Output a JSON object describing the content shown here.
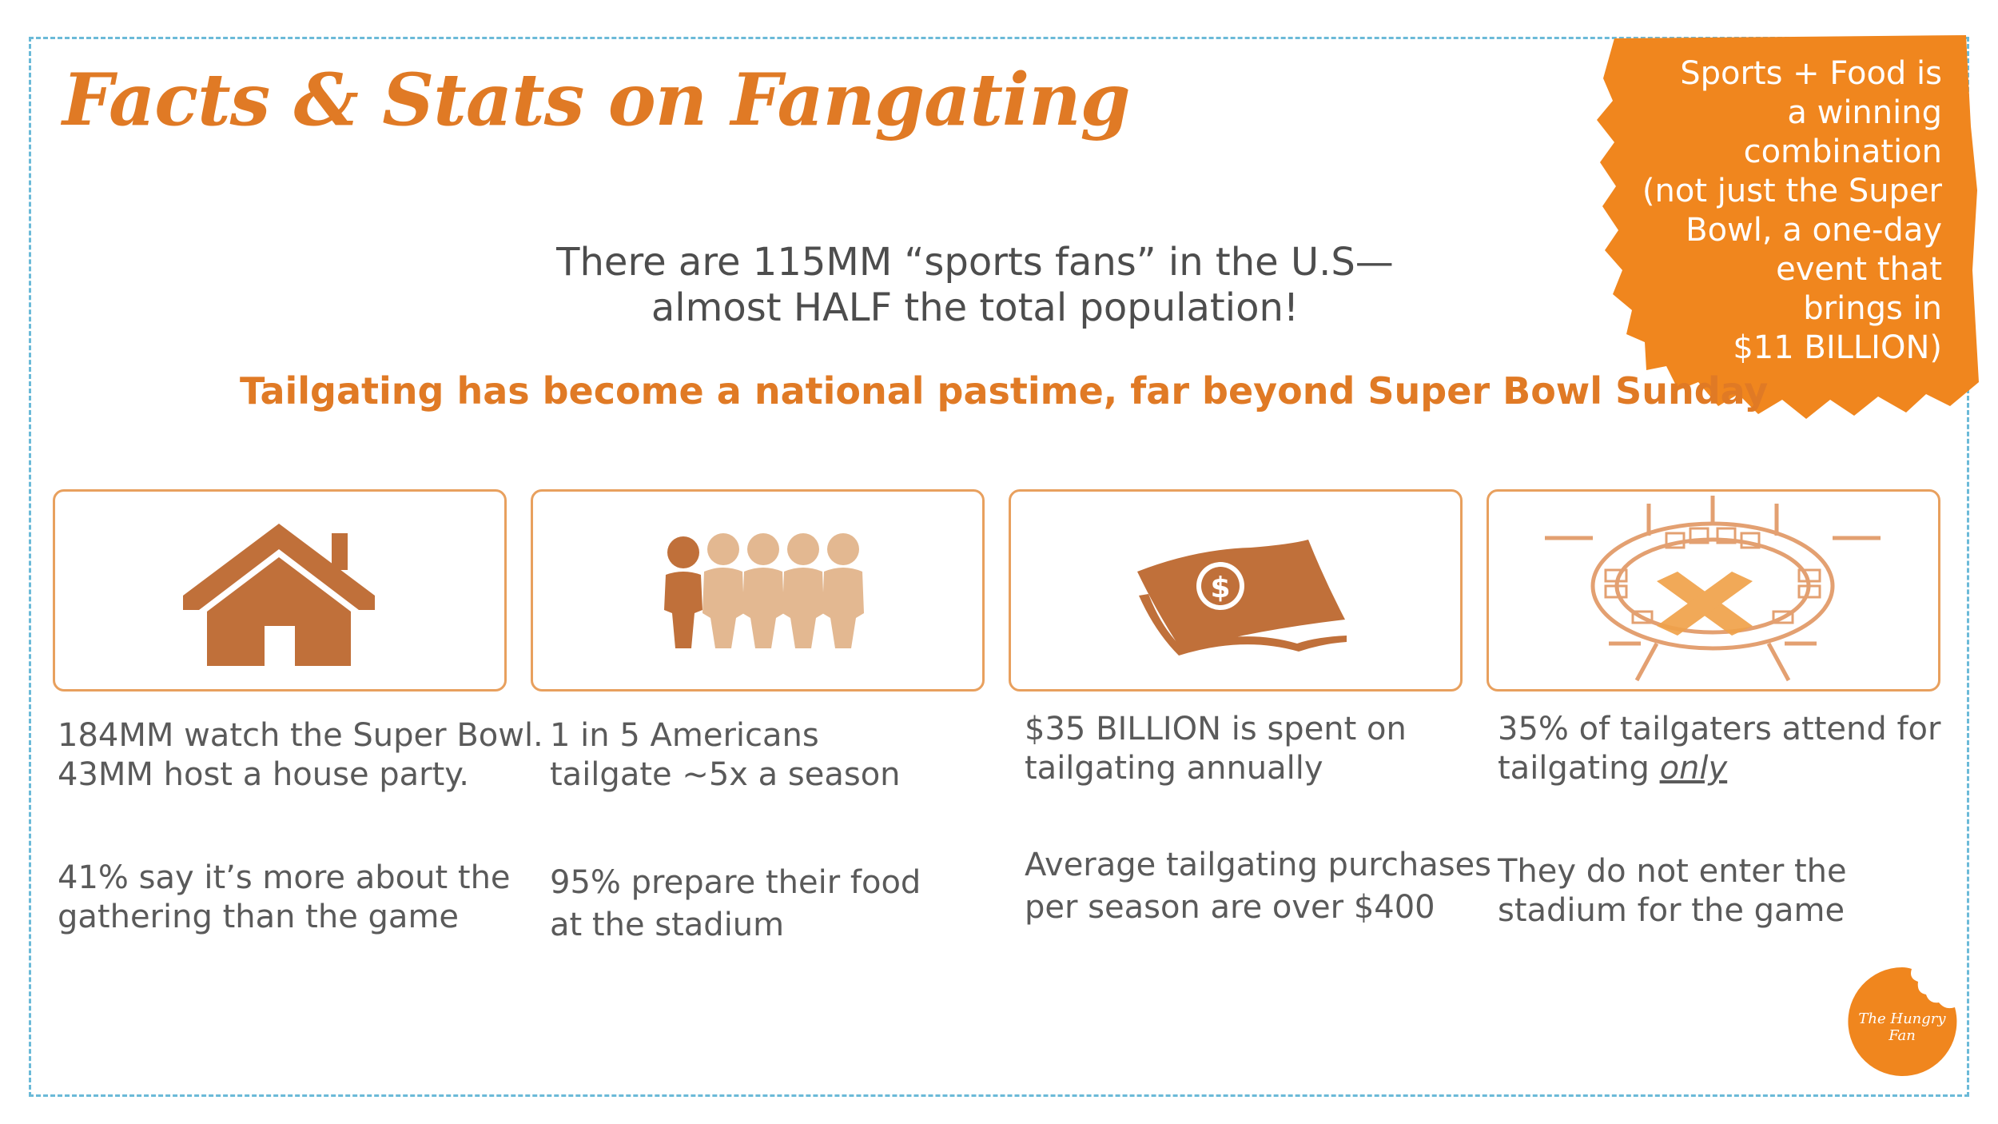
{
  "title": "Facts & Stats on Fangating",
  "splash": {
    "lines": [
      "Sports + Food is",
      "a winning",
      "combination",
      "(not just the Super",
      "Bowl, a one-day",
      "event that",
      "brings in",
      "$11 BILLION)"
    ],
    "color": "#f0861e"
  },
  "headline": {
    "line1": "There are 115MM “sports fans” in the U.S—",
    "line2": "almost HALF the total population!"
  },
  "subheadline": "Tailgating has become a national pastime, far beyond Super Bowl Sunday",
  "colors": {
    "accent": "#e07a25",
    "icon_dark": "#c0703a",
    "icon_light": "#e3b891",
    "frame": "#6bbad8",
    "text": "#5a5a5a"
  },
  "cards": [
    {
      "icon": "house-icon",
      "fact1": [
        "184MM watch the Super Bowl.",
        "43MM host a house party."
      ],
      "fact2": [
        "41% say it’s more about the",
        "gathering than the game"
      ]
    },
    {
      "icon": "people-icon",
      "fact1": [
        "1 in 5 Americans",
        "tailgate ~5x a season"
      ],
      "fact2": [
        "95% prepare their food",
        "at the stadium"
      ]
    },
    {
      "icon": "money-icon",
      "fact1": [
        "$35 BILLION is spent on",
        "tailgating annually"
      ],
      "fact2": [
        "Average tailgating purchases",
        "per season are over $400"
      ]
    },
    {
      "icon": "stadium-crossed-icon",
      "fact1_pre": "35% of tailgaters attend for",
      "fact1_main": "tailgating ",
      "fact1_emph": "only",
      "fact2": [
        "They do not enter the",
        "stadium for the game"
      ]
    }
  ],
  "logo_text": "The Hungry Fan"
}
